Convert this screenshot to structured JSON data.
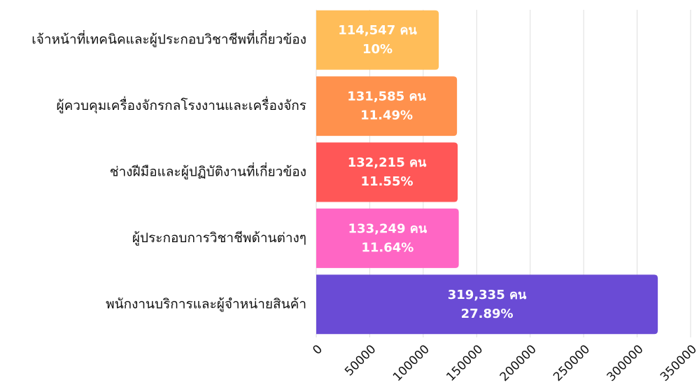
{
  "chart_data": {
    "type": "bar",
    "orientation": "horizontal",
    "categories": [
      "เจ้าหน้าที่เทคนิคและผู้ประกอบวิชาชีพที่เกี่ยวข้อง",
      "ผู้ควบคุมเครื่องจักรกลโรงงานและเครื่องจักร",
      "ช่างฝีมือและผู้ปฏิบัติงานที่เกี่ยวข้อง",
      "ผู้ประกอบการวิชาชีพด้านต่างๆ",
      "พนักงานบริการและผู้จำหน่ายสินค้า"
    ],
    "values": [
      114547,
      131585,
      132215,
      133249,
      319335
    ],
    "value_labels": [
      "114,547 คน",
      "131,585 คน",
      "132,215 คน",
      "133,249 คน",
      "319,335 คน"
    ],
    "percent_labels": [
      "10%",
      "11.49%",
      "11.55%",
      "11.64%",
      "27.89%"
    ],
    "colors": [
      "#ffbd59",
      "#ff914d",
      "#ff5757",
      "#ff66c4",
      "#6a4bd5"
    ],
    "xlim": [
      0,
      350000
    ],
    "xticks": [
      0,
      50000,
      100000,
      150000,
      200000,
      250000,
      300000,
      350000
    ],
    "grid": true
  }
}
